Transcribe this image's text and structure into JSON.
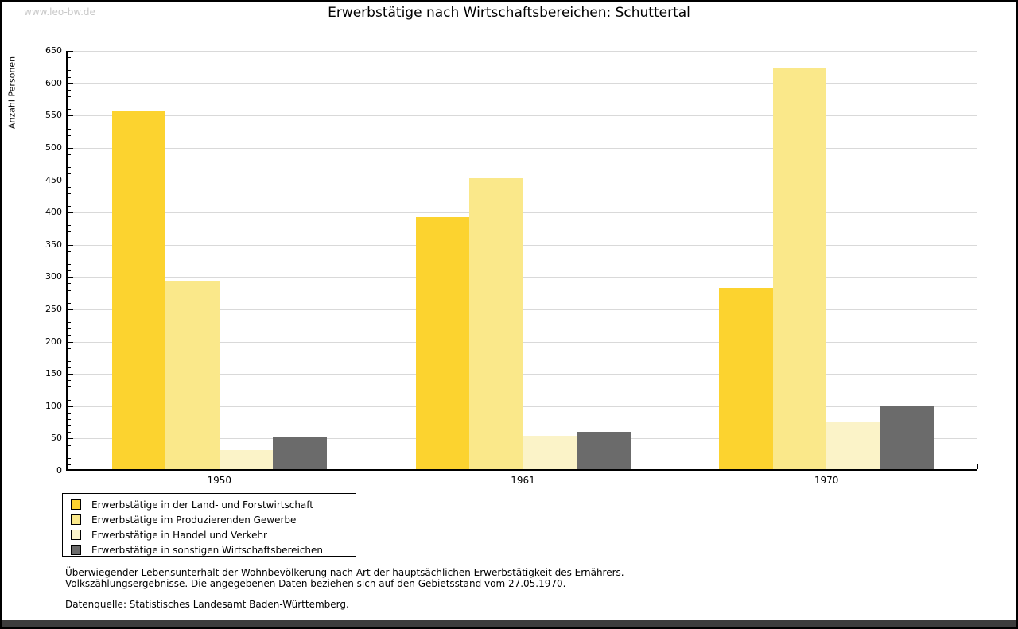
{
  "watermark": "www.leo-bw.de",
  "chart_data": {
    "type": "bar",
    "title": "Erwerbstätige nach Wirtschaftsbereichen: Schuttertal",
    "ylabel": "Anzahl Personen",
    "xlabel": "",
    "categories": [
      "1950",
      "1961",
      "1970"
    ],
    "series": [
      {
        "name": "Erwerbstätige in der Land- und Forstwirtschaft",
        "color": "#fcd32f",
        "values": [
          554,
          390,
          281
        ]
      },
      {
        "name": "Erwerbstätige im Produzierenden Gewerbe",
        "color": "#fae88a",
        "values": [
          290,
          451,
          620
        ]
      },
      {
        "name": "Erwerbstätige in Handel und Verkehr",
        "color": "#fbf3c8",
        "values": [
          29,
          52,
          73
        ]
      },
      {
        "name": "Erwerbstätige in sonstigen Wirtschaftsbereichen",
        "color": "#6b6b6b",
        "values": [
          50,
          58,
          97
        ]
      }
    ],
    "ylim": [
      0,
      650
    ],
    "ytick_step": 50,
    "ytick_minor_step": 10,
    "grid": true,
    "legend_position": "bottom-left",
    "grid_color": "#d9d9d9"
  },
  "footnotes": {
    "line1": "Überwiegender Lebensunterhalt der Wohnbevölkerung nach Art der hauptsächlichen Erwerbstätigkeit des Ernährers.",
    "line2": "Volkszählungsergebnisse. Die angegebenen Daten beziehen sich auf den Gebietsstand vom 27.05.1970.",
    "source": "Datenquelle: Statistisches Landesamt Baden-Württemberg."
  }
}
